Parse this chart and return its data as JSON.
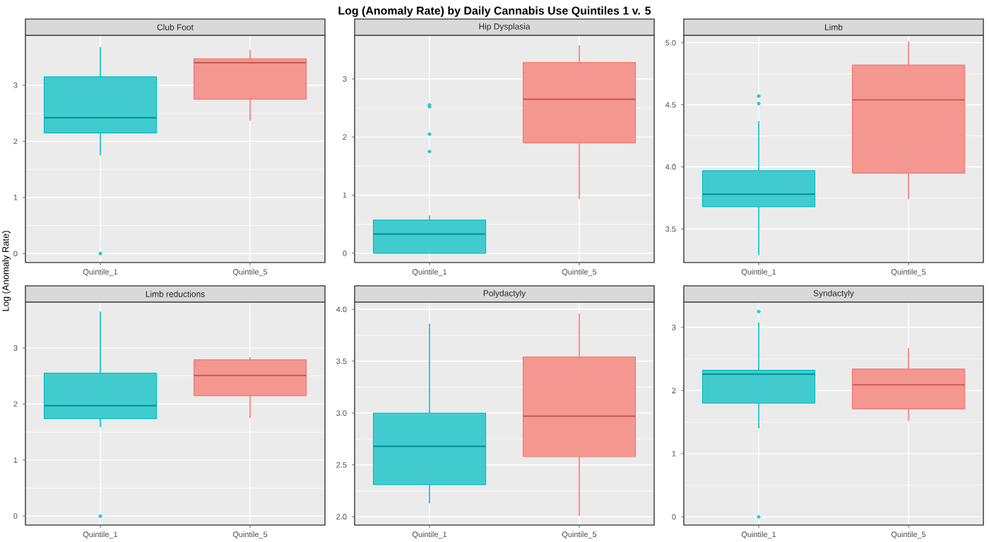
{
  "chart_data": [
    {
      "type": "box",
      "title": "Club Foot",
      "ylabel": "Log (Anomaly Rate)",
      "annotations": [
        "Log (Anomaly Rate) by Daily Cannabis Use Quintiles 1 v. 5"
      ],
      "categories": [
        "Quintile_1",
        "Quintile_5"
      ],
      "colors": [
        "#00bfc4",
        "#f8766d"
      ],
      "ylim": [
        -0.16,
        3.89
      ],
      "yticks": [
        0,
        1,
        2,
        3
      ],
      "grid": true,
      "boxes": [
        {
          "low": 1.75,
          "q1": 2.15,
          "median": 2.42,
          "q3": 3.15,
          "high": 3.68,
          "outliers": [
            0
          ]
        },
        {
          "low": 2.37,
          "q1": 2.75,
          "median": 3.4,
          "q3": 3.47,
          "high": 3.63
        }
      ]
    },
    {
      "type": "box",
      "title": "Hip Dysplasia",
      "categories": [
        "Quintile_1",
        "Quintile_5"
      ],
      "colors": [
        "#00bfc4",
        "#f8766d"
      ],
      "ylim": [
        -0.16,
        3.75
      ],
      "yticks": [
        0,
        1,
        2,
        3
      ],
      "grid": true,
      "boxes": [
        {
          "low": 0,
          "q1": 0,
          "median": 0.33,
          "q3": 0.57,
          "high": 0.65,
          "outliers": [
            1.75,
            2.05,
            2.52,
            2.55
          ]
        },
        {
          "low": 0.93,
          "q1": 1.9,
          "median": 2.65,
          "q3": 3.28,
          "high": 3.58
        }
      ]
    },
    {
      "type": "box",
      "title": "Limb",
      "categories": [
        "Quintile_1",
        "Quintile_5"
      ],
      "colors": [
        "#00bfc4",
        "#f8766d"
      ],
      "ylim": [
        3.23,
        5.06
      ],
      "yticks": [
        3.5,
        {
          "value": 4,
          "label": "4.0"
        },
        4.5,
        {
          "value": 5,
          "label": "5.0"
        }
      ],
      "grid": true,
      "boxes": [
        {
          "low": 3.29,
          "q1": 3.68,
          "median": 3.78,
          "q3": 3.97,
          "high": 4.37,
          "outliers": [
            4.51,
            4.57
          ]
        },
        {
          "low": 3.74,
          "q1": 3.95,
          "median": 4.54,
          "q3": 4.82,
          "high": 5.01
        }
      ]
    },
    {
      "type": "box",
      "title": "Limb reductions",
      "categories": [
        "Quintile_1",
        "Quintile_5"
      ],
      "colors": [
        "#00bfc4",
        "#f8766d"
      ],
      "ylim": [
        -0.16,
        3.82
      ],
      "yticks": [
        0,
        1,
        2,
        3
      ],
      "grid": true,
      "boxes": [
        {
          "low": 1.59,
          "q1": 1.74,
          "median": 1.97,
          "q3": 2.55,
          "high": 3.65,
          "outliers": [
            0
          ]
        },
        {
          "low": 1.75,
          "q1": 2.15,
          "median": 2.51,
          "q3": 2.79,
          "high": 2.83
        }
      ]
    },
    {
      "type": "box",
      "title": "Polydactyly",
      "categories": [
        "Quintile_1",
        "Quintile_5"
      ],
      "colors": [
        "#00bfc4",
        "#f8766d"
      ],
      "ylim": [
        1.92,
        4.07
      ],
      "yticks": [
        {
          "value": 2,
          "label": "2.0"
        },
        2.5,
        {
          "value": 3,
          "label": "3.0"
        },
        3.5,
        {
          "value": 4,
          "label": "4.0"
        }
      ],
      "grid": true,
      "boxes": [
        {
          "low": 2.13,
          "q1": 2.31,
          "median": 2.68,
          "q3": 3.0,
          "high": 3.86
        },
        {
          "low": 2.01,
          "q1": 2.58,
          "median": 2.97,
          "q3": 3.54,
          "high": 3.96
        }
      ]
    },
    {
      "type": "box",
      "title": "Syndactyly",
      "categories": [
        "Quintile_1",
        "Quintile_5"
      ],
      "colors": [
        "#00bfc4",
        "#f8766d"
      ],
      "ylim": [
        -0.13,
        3.4
      ],
      "yticks": [
        0,
        1,
        2,
        3
      ],
      "grid": true,
      "boxes": [
        {
          "low": 1.4,
          "q1": 1.8,
          "median": 2.26,
          "q3": 2.32,
          "high": 3.08,
          "outliers": [
            0,
            3.25
          ]
        },
        {
          "low": 1.52,
          "q1": 1.71,
          "median": 2.09,
          "q3": 2.34,
          "high": 2.67
        }
      ]
    }
  ]
}
